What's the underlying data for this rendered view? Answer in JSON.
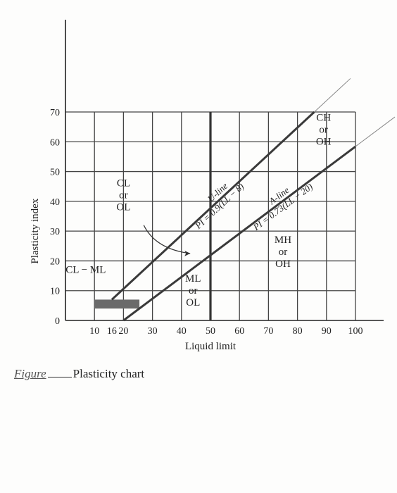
{
  "chart_data": {
    "type": "line",
    "title": "",
    "xlabel": "Liquid limit",
    "ylabel": "Plasticity index",
    "xlim": [
      0,
      100
    ],
    "ylim": [
      0,
      70
    ],
    "grid": true,
    "xticks": [
      10,
      16,
      20,
      30,
      40,
      50,
      60,
      70,
      80,
      90,
      100
    ],
    "yticks": [
      0,
      10,
      20,
      30,
      40,
      50,
      60,
      70
    ],
    "series": [
      {
        "name": "U-line",
        "equation": "PI = 0.9(LL − 8)",
        "x": [
          16,
          85.8
        ],
        "y": [
          7,
          70
        ]
      },
      {
        "name": "A-line",
        "equation": "PI = 0.73(LL − 20)",
        "x": [
          20,
          100
        ],
        "y": [
          0,
          58.4
        ]
      }
    ],
    "boundary_lines": [
      {
        "label": "LL = 50",
        "x": 50
      }
    ],
    "shaded_zone": {
      "label": "CL − ML",
      "x_range": [
        10,
        25.5
      ],
      "y_range": [
        4,
        7
      ]
    },
    "zones": [
      {
        "label": [
          "CL",
          "or",
          "OL"
        ],
        "x": 20,
        "y": 41
      },
      {
        "label": [
          "CL − ML"
        ],
        "x": 7,
        "y": 16
      },
      {
        "label": [
          "ML",
          "or",
          "OL"
        ],
        "x": 44,
        "y": 9
      },
      {
        "label": [
          "MH",
          "or",
          "OH"
        ],
        "x": 75,
        "y": 22
      },
      {
        "label": [
          "CH",
          "or",
          "OH"
        ],
        "x": 89,
        "y": 63
      }
    ]
  },
  "caption": {
    "figure_word": "Figure",
    "text": "Plasticity chart"
  }
}
